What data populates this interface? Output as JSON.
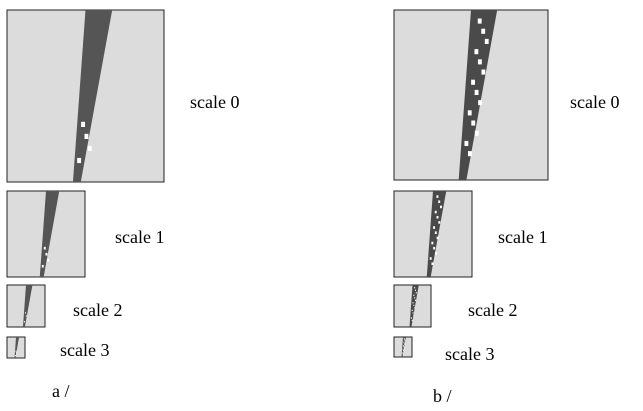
{
  "panels": [
    {
      "scales": [
        "scale 0",
        "scale 1",
        "scale 2",
        "scale 3"
      ],
      "caption": "a /"
    },
    {
      "scales": [
        "scale 0",
        "scale 1",
        "scale 2",
        "scale 3"
      ],
      "caption": "b /"
    }
  ]
}
